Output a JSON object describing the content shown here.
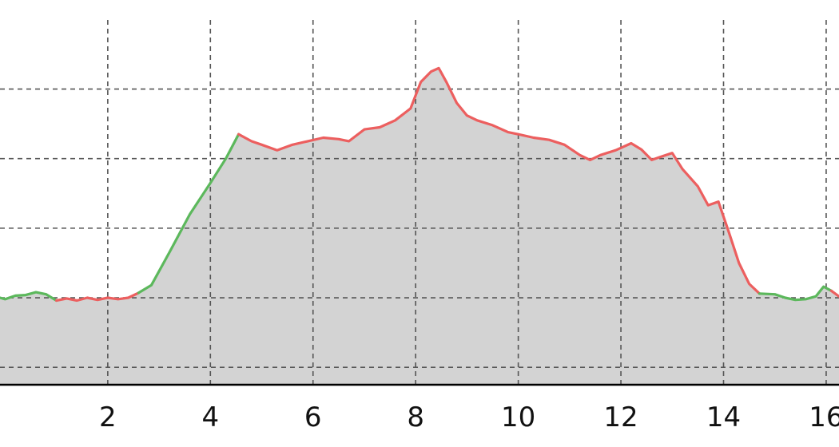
{
  "chart_data": {
    "type": "area",
    "title": "",
    "xlabel": "",
    "ylabel": "",
    "xlim": [
      -0.1,
      16.25
    ],
    "ylim": [
      -0.25,
      5.05
    ],
    "x_tick_labels": [
      "2",
      "4",
      "6",
      "8",
      "10",
      "12",
      "14",
      "16"
    ],
    "x_tick_values": [
      2,
      4,
      6,
      8,
      10,
      12,
      14,
      16
    ],
    "y_grid_values": [
      0,
      1,
      2,
      3,
      4
    ],
    "grid": true,
    "colors": {
      "fill": "#d3d3d3",
      "green": "#5cb85c",
      "red": "#ec5f5f",
      "grid": "#555555",
      "axis": "#000000"
    },
    "points": [
      [
        -0.1,
        1.0
      ],
      [
        0.0,
        0.98
      ],
      [
        0.2,
        1.03
      ],
      [
        0.4,
        1.04
      ],
      [
        0.6,
        1.08
      ],
      [
        0.8,
        1.05
      ],
      [
        1.0,
        0.96
      ],
      [
        1.2,
        0.99
      ],
      [
        1.4,
        0.96
      ],
      [
        1.6,
        1.0
      ],
      [
        1.8,
        0.97
      ],
      [
        2.0,
        1.0
      ],
      [
        2.2,
        0.98
      ],
      [
        2.4,
        1.0
      ],
      [
        2.6,
        1.07
      ],
      [
        2.85,
        1.18
      ],
      [
        3.2,
        1.65
      ],
      [
        3.6,
        2.2
      ],
      [
        4.0,
        2.65
      ],
      [
        4.3,
        3.0
      ],
      [
        4.55,
        3.35
      ],
      [
        4.8,
        3.25
      ],
      [
        5.0,
        3.2
      ],
      [
        5.3,
        3.12
      ],
      [
        5.6,
        3.2
      ],
      [
        5.9,
        3.25
      ],
      [
        6.2,
        3.3
      ],
      [
        6.5,
        3.28
      ],
      [
        6.7,
        3.25
      ],
      [
        7.0,
        3.42
      ],
      [
        7.3,
        3.45
      ],
      [
        7.6,
        3.55
      ],
      [
        7.9,
        3.72
      ],
      [
        8.1,
        4.1
      ],
      [
        8.3,
        4.25
      ],
      [
        8.45,
        4.3
      ],
      [
        8.6,
        4.1
      ],
      [
        8.8,
        3.8
      ],
      [
        9.0,
        3.62
      ],
      [
        9.2,
        3.55
      ],
      [
        9.5,
        3.48
      ],
      [
        9.8,
        3.38
      ],
      [
        10.0,
        3.35
      ],
      [
        10.3,
        3.3
      ],
      [
        10.6,
        3.27
      ],
      [
        10.9,
        3.2
      ],
      [
        11.2,
        3.05
      ],
      [
        11.4,
        2.98
      ],
      [
        11.6,
        3.05
      ],
      [
        11.9,
        3.12
      ],
      [
        12.2,
        3.22
      ],
      [
        12.4,
        3.13
      ],
      [
        12.6,
        2.98
      ],
      [
        12.75,
        3.02
      ],
      [
        13.0,
        3.08
      ],
      [
        13.2,
        2.85
      ],
      [
        13.5,
        2.6
      ],
      [
        13.7,
        2.33
      ],
      [
        13.9,
        2.38
      ],
      [
        14.1,
        1.95
      ],
      [
        14.3,
        1.5
      ],
      [
        14.5,
        1.2
      ],
      [
        14.7,
        1.06
      ],
      [
        15.0,
        1.05
      ],
      [
        15.2,
        1.0
      ],
      [
        15.4,
        0.97
      ],
      [
        15.6,
        0.98
      ],
      [
        15.8,
        1.02
      ],
      [
        15.95,
        1.16
      ],
      [
        16.1,
        1.1
      ],
      [
        16.25,
        1.02
      ]
    ],
    "segments": [
      {
        "color": "green",
        "from_x": -0.1,
        "to_x": 1.0
      },
      {
        "color": "red",
        "from_x": 1.0,
        "to_x": 2.6
      },
      {
        "color": "green",
        "from_x": 2.6,
        "to_x": 4.55
      },
      {
        "color": "red",
        "from_x": 4.55,
        "to_x": 14.7
      },
      {
        "color": "green",
        "from_x": 14.7,
        "to_x": 16.1
      },
      {
        "color": "red",
        "from_x": 16.1,
        "to_x": 16.25
      }
    ]
  }
}
